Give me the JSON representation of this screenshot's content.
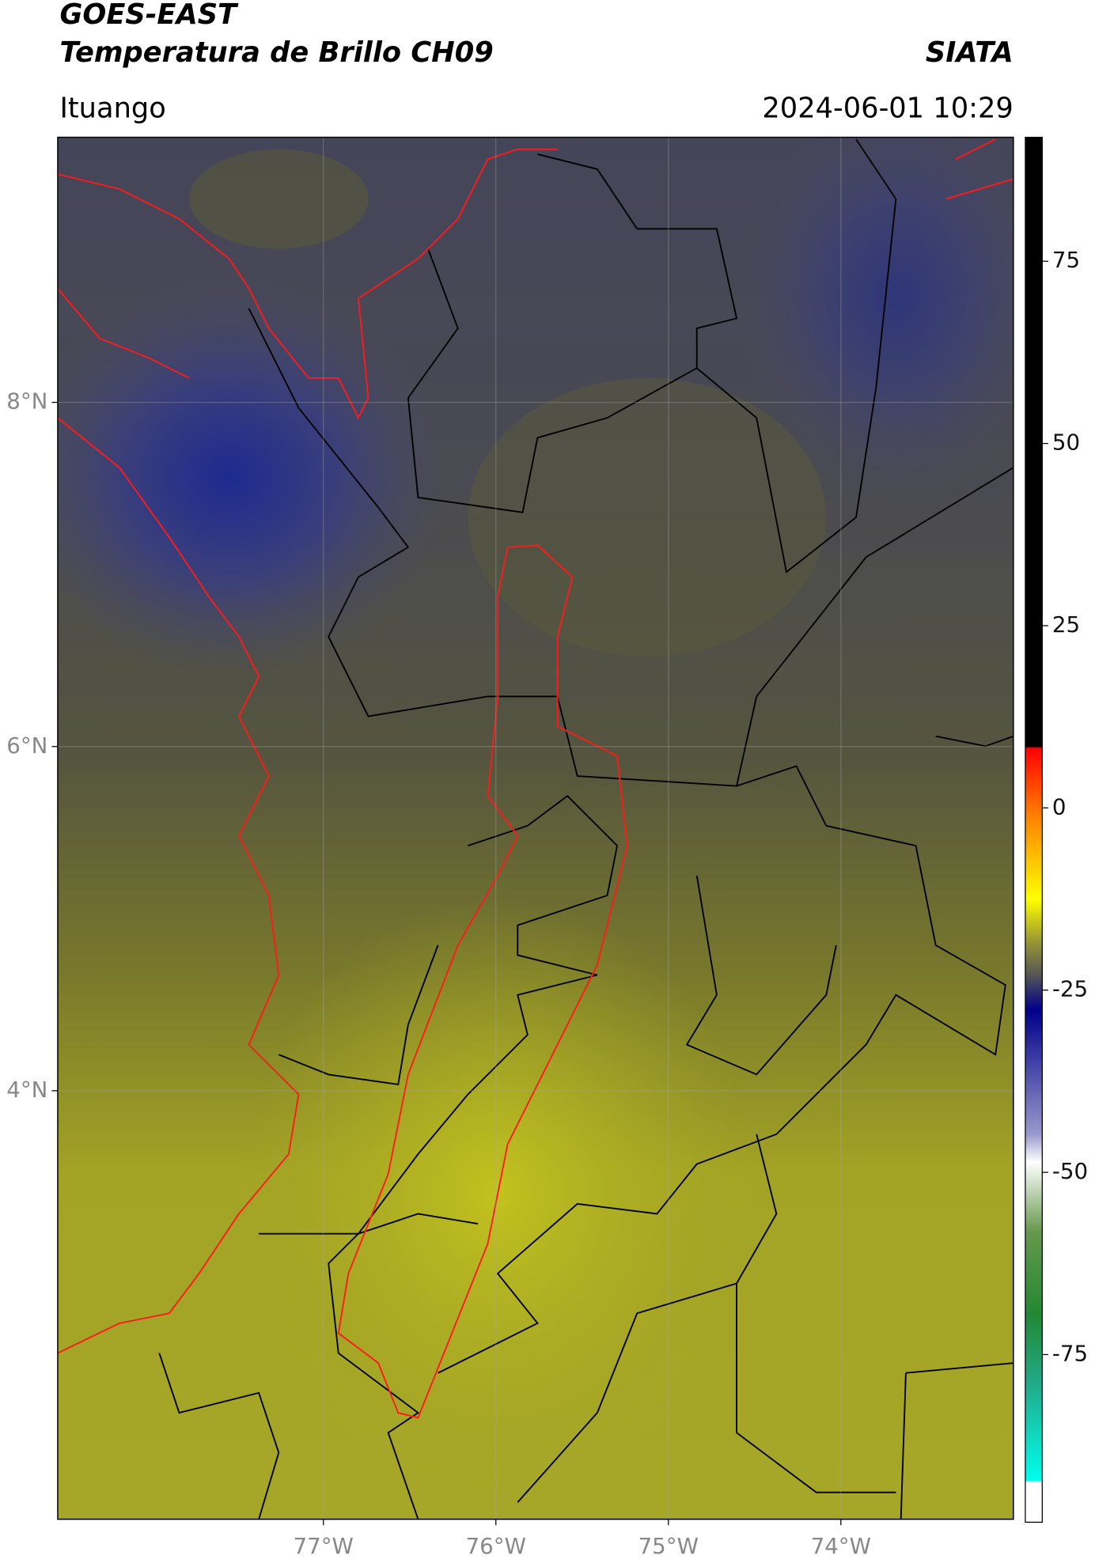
{
  "header": {
    "title": "GOES-EAST",
    "subtitle": "Temperatura de Brillo CH09",
    "source": "SIATA",
    "location": "Ituango",
    "datetime": "2024-06-01 10:29"
  },
  "map": {
    "lonlim": [
      -78.54,
      -73.0
    ],
    "latlim": [
      1.51,
      9.54
    ],
    "lon_ticks": [
      {
        "value": -77,
        "label": "77°W"
      },
      {
        "value": -76,
        "label": "76°W"
      },
      {
        "value": -75,
        "label": "75°W"
      },
      {
        "value": -74,
        "label": "74°W"
      }
    ],
    "lat_ticks": [
      {
        "value": 8,
        "label": "8°N"
      },
      {
        "value": 6,
        "label": "6°N"
      },
      {
        "value": 4,
        "label": "4°N"
      }
    ],
    "grid": true
  },
  "colorbar": {
    "lim": [
      -98,
      92
    ],
    "ticks": [
      75,
      50,
      25,
      0,
      -25,
      -50,
      -75
    ]
  }
}
